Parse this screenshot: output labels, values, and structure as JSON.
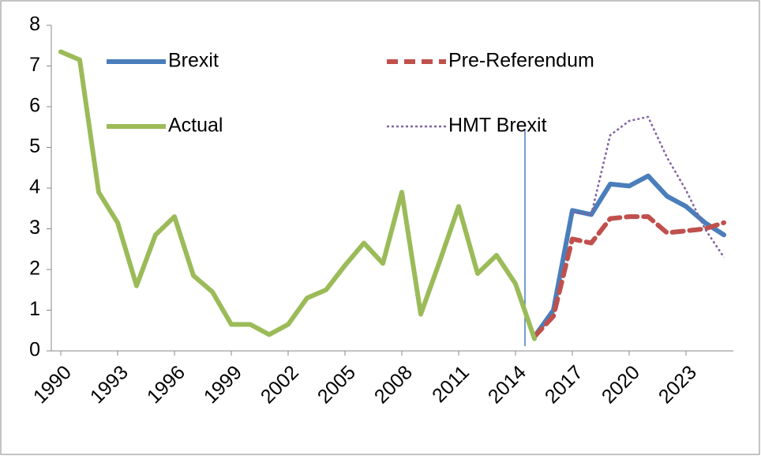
{
  "chart_data": {
    "type": "line",
    "x": [
      1990,
      1991,
      1992,
      1993,
      1994,
      1995,
      1996,
      1997,
      1998,
      1999,
      2000,
      2001,
      2002,
      2003,
      2004,
      2005,
      2006,
      2007,
      2008,
      2009,
      2010,
      2011,
      2012,
      2013,
      2014,
      2015,
      2016,
      2017,
      2018,
      2019,
      2020,
      2021,
      2022,
      2023,
      2024,
      2025
    ],
    "xlim": [
      1989.5,
      2025.5
    ],
    "xticks": [
      1990,
      1993,
      1996,
      1999,
      2002,
      2005,
      2008,
      2011,
      2014,
      2017,
      2020,
      2023
    ],
    "ylim": [
      0,
      8
    ],
    "yticks": [
      0,
      1,
      2,
      3,
      4,
      5,
      6,
      7,
      8
    ],
    "grid": false,
    "legend": "top",
    "series": [
      {
        "name": "Brexit",
        "color": "#4a7ebb",
        "style": "solid",
        "values": [
          null,
          null,
          null,
          null,
          null,
          null,
          null,
          null,
          null,
          null,
          null,
          null,
          null,
          null,
          null,
          null,
          null,
          null,
          null,
          null,
          null,
          null,
          null,
          null,
          null,
          0.35,
          1.0,
          3.45,
          3.35,
          4.1,
          4.05,
          4.3,
          3.8,
          3.55,
          3.15,
          2.85
        ]
      },
      {
        "name": "Pre-Referendum",
        "color": "#c0504d",
        "style": "dashed",
        "values": [
          null,
          null,
          null,
          null,
          null,
          null,
          null,
          null,
          null,
          null,
          null,
          null,
          null,
          null,
          null,
          null,
          null,
          null,
          null,
          null,
          null,
          null,
          null,
          null,
          null,
          0.35,
          0.85,
          2.75,
          2.65,
          3.25,
          3.3,
          3.3,
          2.9,
          2.95,
          3.0,
          3.15
        ]
      },
      {
        "name": "Actual",
        "color": "#9bbb59",
        "style": "solid",
        "values": [
          7.35,
          7.15,
          3.9,
          3.15,
          1.6,
          2.85,
          3.3,
          1.85,
          1.45,
          0.65,
          0.65,
          0.4,
          0.65,
          1.3,
          1.5,
          2.1,
          2.65,
          2.15,
          3.9,
          0.9,
          2.2,
          3.55,
          1.9,
          2.35,
          1.65,
          0.3,
          null,
          null,
          null,
          null,
          null,
          null,
          null,
          null,
          null,
          null
        ]
      },
      {
        "name": "HMT Brexit",
        "color": "#8064a2",
        "style": "dotted",
        "values": [
          null,
          null,
          null,
          null,
          null,
          null,
          null,
          null,
          null,
          null,
          null,
          null,
          null,
          null,
          null,
          null,
          null,
          null,
          null,
          null,
          null,
          null,
          null,
          null,
          null,
          null,
          null,
          3.4,
          3.35,
          5.3,
          5.65,
          5.75,
          4.75,
          3.95,
          3.0,
          2.3
        ]
      }
    ]
  }
}
